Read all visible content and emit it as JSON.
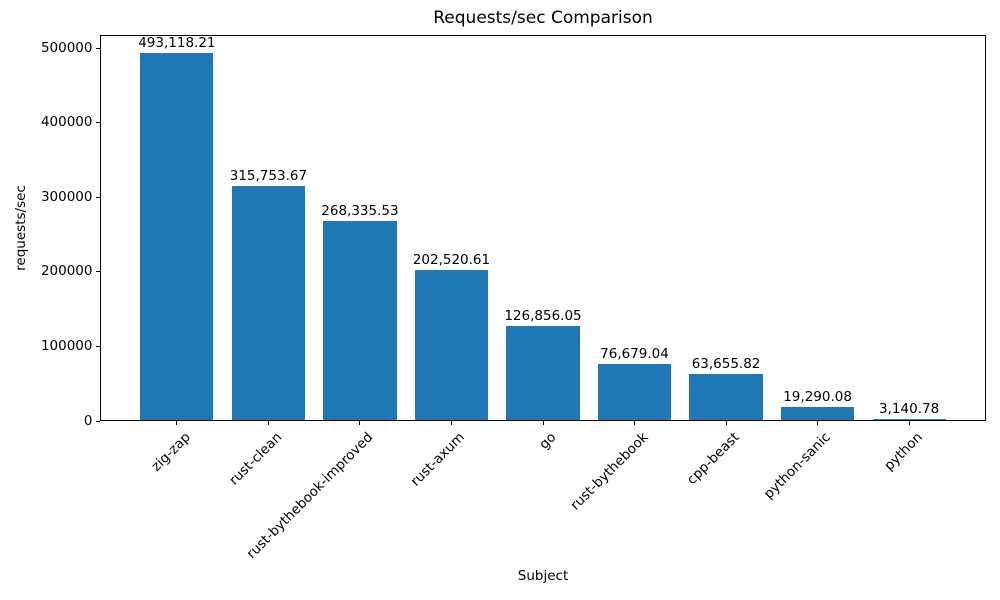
{
  "chart_data": {
    "type": "bar",
    "title": "Requests/sec Comparison",
    "xlabel": "Subject",
    "ylabel": "requests/sec",
    "categories": [
      "zig-zap",
      "rust-clean",
      "rust-bythebook-improved",
      "rust-axum",
      "go",
      "rust-bythebook",
      "cpp-beast",
      "python-sanic",
      "python"
    ],
    "values": [
      493118.21,
      315753.67,
      268335.53,
      202520.61,
      126856.05,
      76679.04,
      63655.82,
      19290.08,
      3140.78
    ],
    "value_labels": [
      "493,118.21",
      "315,753.67",
      "268,335.53",
      "202,520.61",
      "126,856.05",
      "76,679.04",
      "63,655.82",
      "19,290.08",
      "3,140.78"
    ],
    "yticks": [
      0,
      100000,
      200000,
      300000,
      400000,
      500000
    ],
    "ytick_labels": [
      "0",
      "100000",
      "200000",
      "300000",
      "400000",
      "500000"
    ],
    "ylim": [
      0,
      517774
    ],
    "bar_color": "#1f77b4",
    "grid": false,
    "legend": null,
    "x_tick_label_rotation_deg": 45
  }
}
